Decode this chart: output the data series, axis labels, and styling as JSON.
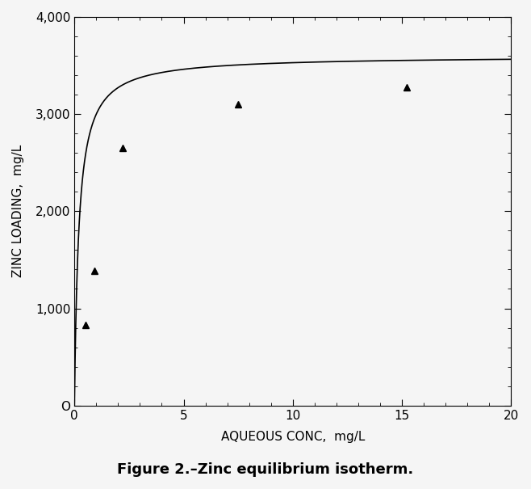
{
  "title": "Figure 2.–Zinc equilibrium isotherm.",
  "xlabel": "AQUEOUS CONC,  mg/L",
  "ylabel": "ZINC LOADING,  mg/L",
  "xlim": [
    0,
    20
  ],
  "ylim": [
    0,
    4000
  ],
  "xticks": [
    0,
    5,
    10,
    15,
    20
  ],
  "yticks": [
    0,
    1000,
    2000,
    3000,
    4000
  ],
  "ytick_labels": [
    "O",
    "1,000",
    "2,000",
    "3,000",
    "4,000"
  ],
  "data_points_x": [
    0.5,
    0.9,
    2.2,
    7.5,
    15.2
  ],
  "data_points_y": [
    830,
    1390,
    2650,
    3100,
    3280
  ],
  "langmuir_qmax": 3600,
  "langmuir_b": 5.0,
  "line_color": "#000000",
  "marker_color": "#000000",
  "background_color": "#f5f5f5",
  "title_fontsize": 13,
  "axis_label_fontsize": 11,
  "tick_fontsize": 11
}
